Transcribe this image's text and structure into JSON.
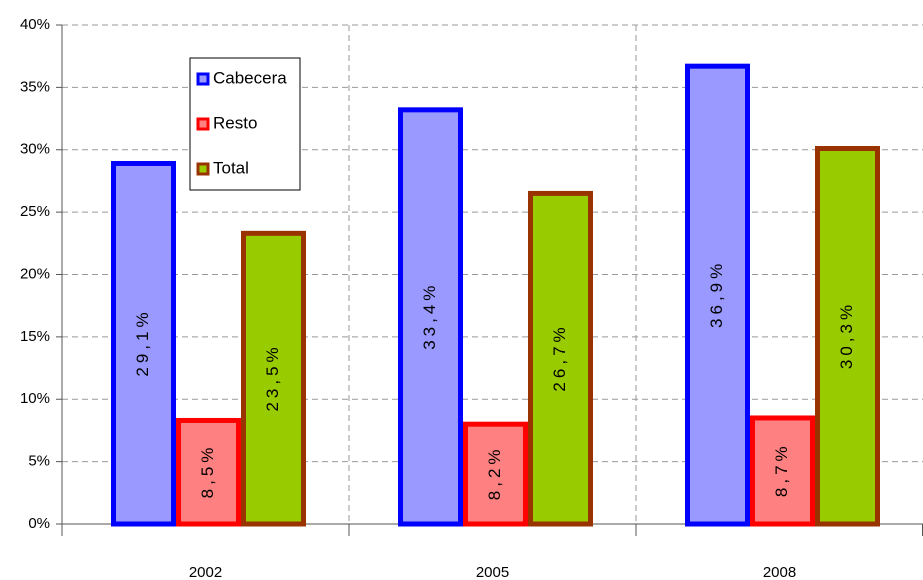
{
  "chart_data": {
    "type": "bar",
    "categories": [
      "2002",
      "2005",
      "2008"
    ],
    "series": [
      {
        "name": "Cabecera",
        "color": "#9999ff",
        "edge_color": "#0000ff",
        "values": [
          29.1,
          33.4,
          36.9
        ],
        "value_labels": [
          "29,1%",
          "33,4%",
          "36,9%"
        ]
      },
      {
        "name": "Resto",
        "color": "#ff8080",
        "edge_color": "#ff0000",
        "values": [
          8.5,
          8.2,
          8.7
        ],
        "value_labels": [
          "8,5%",
          "8,2%",
          "8,7%"
        ]
      },
      {
        "name": "Total",
        "color": "#99cc00",
        "edge_color": "#993300",
        "values": [
          23.5,
          26.7,
          30.3
        ],
        "value_labels": [
          "23,5%",
          "26,7%",
          "30,3%"
        ]
      }
    ],
    "ylim": [
      0,
      40
    ],
    "yticks": [
      {
        "value": 0,
        "label": "0%"
      },
      {
        "value": 5,
        "label": "5%"
      },
      {
        "value": 10,
        "label": "10%"
      },
      {
        "value": 15,
        "label": "15%"
      },
      {
        "value": 20,
        "label": "20%"
      },
      {
        "value": 25,
        "label": "25%"
      },
      {
        "value": 30,
        "label": "30%"
      },
      {
        "value": 35,
        "label": "35%"
      },
      {
        "value": 40,
        "label": "40%"
      }
    ],
    "grid": true,
    "legend_position": "upper-left"
  }
}
